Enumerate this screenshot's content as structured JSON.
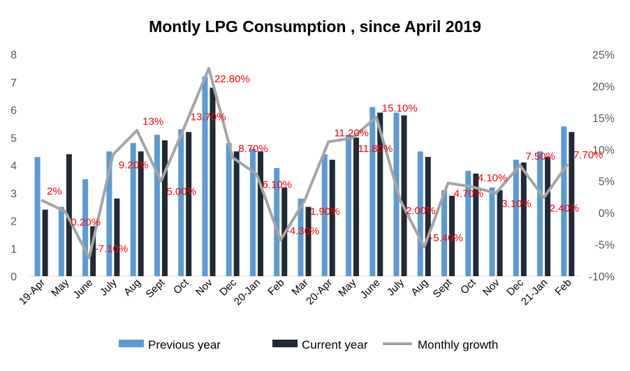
{
  "chart_data": {
    "type": "bar+line",
    "title": "Montly LPG Consumption , since April 2019",
    "categories": [
      "19-Apr",
      "May",
      "June",
      "July",
      "Aug",
      "Sept",
      "Oct",
      "Nov",
      "Dec",
      "20-Jan",
      "Feb",
      "Mar",
      "20-Apr",
      "May",
      "June",
      "July",
      "Aug",
      "Sept",
      "Oct",
      "Nov",
      "Dec",
      "21-Jan",
      "Feb"
    ],
    "series": [
      {
        "name": "Previous year",
        "type": "bar",
        "axis": "left",
        "color": "#5B9BD5",
        "values": [
          4.3,
          2.5,
          3.5,
          4.5,
          4.8,
          5.1,
          5.3,
          7.2,
          4.8,
          4.6,
          3.9,
          2.8,
          4.4,
          5.1,
          6.1,
          5.9,
          4.5,
          3.1,
          3.8,
          3.2,
          4.2,
          4.5,
          5.4
        ]
      },
      {
        "name": "Current year",
        "type": "bar",
        "axis": "left",
        "color": "#222A35",
        "values": [
          2.4,
          4.4,
          1.8,
          2.8,
          4.5,
          4.9,
          5.2,
          6.8,
          4.5,
          4.5,
          3.2,
          2.5,
          4.2,
          5.0,
          5.9,
          5.8,
          4.3,
          2.9,
          3.7,
          3.1,
          4.1,
          4.3,
          5.2
        ]
      },
      {
        "name": "Monthly growth",
        "type": "line",
        "axis": "right",
        "color": "#A5A5A5",
        "values": [
          2.0,
          0.2,
          -7.1,
          9.2,
          13.0,
          5.0,
          13.7,
          22.8,
          8.7,
          6.1,
          -4.3,
          1.9,
          11.2,
          11.8,
          15.1,
          2.0,
          -5.4,
          4.7,
          4.1,
          3.1,
          7.5,
          2.4,
          7.7
        ],
        "labels": [
          "2%",
          "0.20%",
          "-7.10%",
          "9.20%",
          "13%",
          "5.00%",
          "13.70%",
          "22.80%",
          "8.70%",
          "6.10%",
          "-4.30%",
          "1.90%",
          "11.20%",
          "11.80%",
          "15.10%",
          "2.00%",
          "-5.40%",
          "4.70%",
          "4.10%",
          "3.10%",
          "7.50%",
          "2.40%",
          "7.70%"
        ],
        "label_color": "#FF0000"
      }
    ],
    "y_left": {
      "ylim": [
        0,
        8
      ],
      "ticks": [
        "0",
        "1",
        "2",
        "3",
        "4",
        "5",
        "6",
        "7",
        "8"
      ]
    },
    "y_right": {
      "ylim": [
        -10,
        25
      ],
      "ticks": [
        "-10%",
        "-5%",
        "0%",
        "5%",
        "10%",
        "15%",
        "20%",
        "25%"
      ]
    },
    "grid": false,
    "legend": "bottom"
  }
}
